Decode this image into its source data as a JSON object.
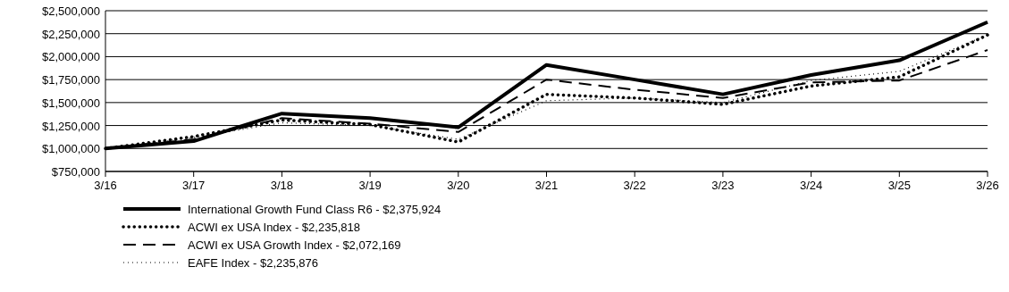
{
  "chart_data": {
    "type": "line",
    "categories": [
      "3/16",
      "3/17",
      "3/18",
      "3/19",
      "3/20",
      "3/21",
      "3/22",
      "3/23",
      "3/24",
      "3/25",
      "3/26"
    ],
    "series": [
      {
        "name": "International Growth Fund Class R6 - $2,375,924",
        "color": "#000000",
        "line_style": "solid",
        "values": [
          1000000,
          1080000,
          1380000,
          1330000,
          1230000,
          1910000,
          1750000,
          1590000,
          1800000,
          1960000,
          2375924
        ]
      },
      {
        "name": "ACWI ex USA Index - $2,235,818",
        "color": "#000000",
        "line_style": "dotted",
        "values": [
          1000000,
          1130000,
          1310000,
          1260000,
          1070000,
          1590000,
          1550000,
          1480000,
          1680000,
          1780000,
          2235818
        ]
      },
      {
        "name": "ACWI ex USA Growth Index - $2,072,169",
        "color": "#000000",
        "line_style": "dashed",
        "values": [
          1000000,
          1100000,
          1330000,
          1270000,
          1180000,
          1750000,
          1640000,
          1550000,
          1720000,
          1740000,
          2072169
        ]
      },
      {
        "name": "EAFE Index - $2,235,876",
        "color": "#000000",
        "line_style": "dotted",
        "values": [
          1000000,
          1120000,
          1280000,
          1250000,
          1100000,
          1520000,
          1550000,
          1500000,
          1740000,
          1840000,
          2235876
        ]
      }
    ],
    "ylim": [
      750000,
      2500000
    ],
    "yticks": [
      {
        "value": 750000,
        "label": "$750,000"
      },
      {
        "value": 1000000,
        "label": "$1,000,000"
      },
      {
        "value": 1250000,
        "label": "$1,250,000"
      },
      {
        "value": 1500000,
        "label": "$1,500,000"
      },
      {
        "value": 1750000,
        "label": "$1,750,000"
      },
      {
        "value": 2000000,
        "label": "$2,000,000"
      },
      {
        "value": 2250000,
        "label": "$2,250,000"
      },
      {
        "value": 2500000,
        "label": "$2,500,000"
      }
    ],
    "grid": "y",
    "legend": "bottom",
    "marker": "none"
  }
}
